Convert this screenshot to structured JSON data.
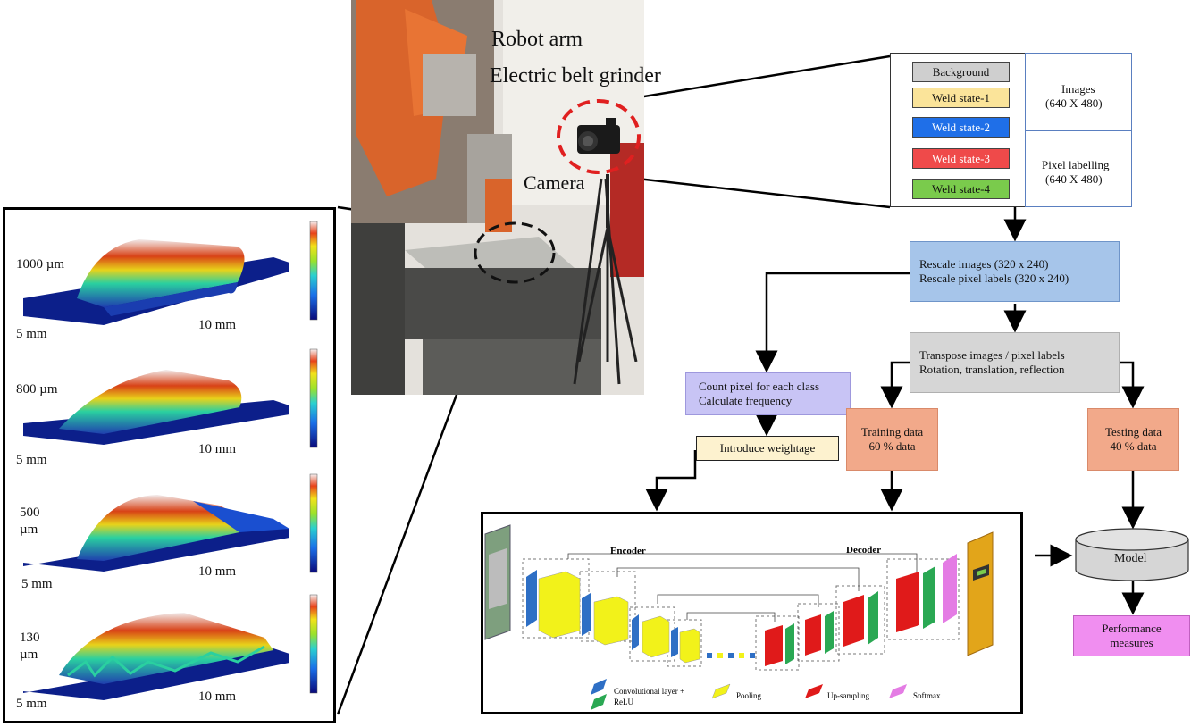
{
  "photo": {
    "robot_arm": "Robot arm",
    "belt_grinder": "Electric belt grinder",
    "camera": "Camera"
  },
  "profiles": [
    {
      "height": "1000 µm",
      "width": "5 mm",
      "length": "10 mm"
    },
    {
      "height": "800 µm",
      "width": "5 mm",
      "length": "10 mm"
    },
    {
      "height": "500",
      "height2": "µm",
      "width": "5 mm",
      "length": "10 mm"
    },
    {
      "height": "130",
      "height2": "µm",
      "width": "5 mm",
      "length": "10 mm"
    }
  ],
  "labels": {
    "classes": [
      "Background",
      "Weld state-1",
      "Weld state-2",
      "Weld state-3",
      "Weld state-4"
    ],
    "class_colors": [
      "#cfcfcf",
      "#fbe49a",
      "#1f6fe8",
      "#ef4a4a",
      "#7acb4c"
    ],
    "images": "Images",
    "images_size": "(640 X 480)",
    "pixel_labelling": "Pixel labelling",
    "pixel_size": "(640 X 480)"
  },
  "flow": {
    "rescale_1": "Rescale images (320 x 240)",
    "rescale_2": "Rescale pixel labels (320 x 240)",
    "transpose_1": "Transpose images / pixel labels",
    "transpose_2": "Rotation, translation, reflection",
    "count_1": "Count pixel for each class",
    "count_2": "Calculate frequency",
    "weightage": "Introduce weightage",
    "training_1": "Training data",
    "training_2": "60 % data",
    "testing_1": "Testing data",
    "testing_2": "40 % data",
    "model": "Model",
    "performance_1": "Performance",
    "performance_2": "measures"
  },
  "network": {
    "encoder": "Encoder",
    "decoder": "Decoder",
    "legend": {
      "conv_1": "Convolutional layer +",
      "conv_2": "ReLU",
      "pooling": "Pooling",
      "upsampling": "Up-sampling",
      "softmax": "Softmax"
    }
  },
  "colors": {
    "blue_box": "#a6c5ea",
    "gray_box": "#d6d6d6",
    "lavender_box": "#c8c4f5",
    "cream_box": "#fdf2cf",
    "salmon_box": "#f2a98a",
    "pink_box": "#f08ef0",
    "conv": "#2e6fc5",
    "pool": "#f2f21a",
    "up": "#e01a1a",
    "relu": "#2aa853",
    "softmax": "#e47ce4"
  }
}
